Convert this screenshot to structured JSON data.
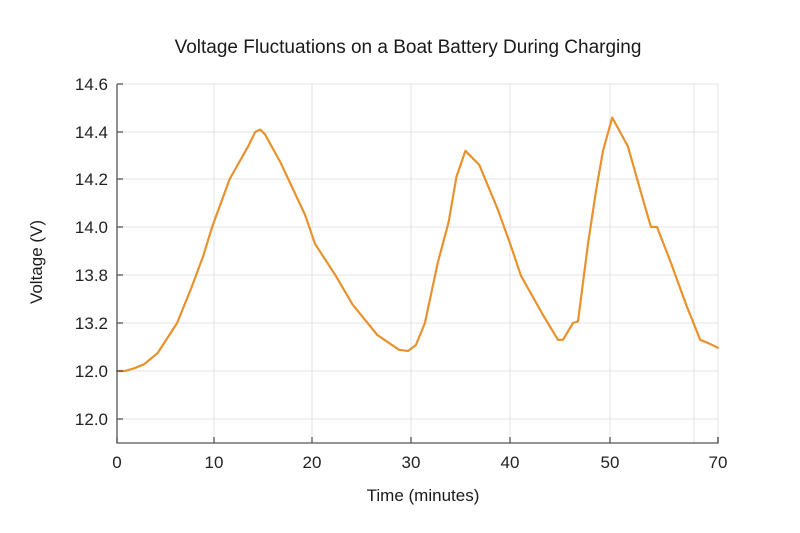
{
  "chart_data": {
    "type": "line",
    "title": "Voltage Fluctuations on a Boat Battery During Charging",
    "xlabel": "Time (minutes)",
    "ylabel": "Voltage (V)",
    "x_tick_labels": [
      "0",
      "10",
      "20",
      "30",
      "40",
      "50",
      "70"
    ],
    "y_tick_labels": [
      "12.0",
      "12.0",
      "13.2",
      "13.8",
      "14.0",
      "14.2",
      "14.4",
      "14.6"
    ],
    "xlim": [
      0,
      70
    ],
    "ylim_labels": [
      "12.0",
      "14.6"
    ],
    "grid": true,
    "legend": null,
    "series": [
      {
        "name": "Voltage",
        "color": "#E8922E",
        "x": [
          0,
          0.8,
          1.8,
          2.8,
          4.2,
          6.2,
          7.7,
          8.9,
          9.8,
          11.6,
          13.5,
          14.2,
          14.7,
          15.2,
          16.8,
          19.3,
          20.3,
          22.4,
          24.1,
          26.6,
          28.8,
          29.7,
          30.5,
          31.4,
          32.7,
          33.8,
          34.6,
          35.5,
          36.9,
          38.8,
          40.1,
          41.1,
          43.3,
          44.8,
          45.3,
          46.3,
          46.8,
          47.8,
          48.6,
          49.3,
          50.4,
          53.3,
          55.9,
          57.6,
          58.7,
          61.3,
          64.1,
          66.7,
          68.5,
          70
        ],
        "values": [
          12.0,
          12.0,
          12.07,
          12.17,
          12.45,
          13.2,
          13.65,
          13.88,
          14.0,
          14.2,
          14.34,
          14.4,
          14.41,
          14.39,
          14.27,
          14.05,
          13.93,
          13.79,
          13.43,
          12.9,
          12.53,
          12.5,
          12.65,
          13.2,
          13.85,
          14.02,
          14.21,
          14.32,
          14.26,
          14.07,
          13.92,
          13.79,
          13.3,
          12.78,
          12.78,
          13.2,
          13.22,
          13.93,
          14.15,
          14.32,
          14.46,
          14.34,
          14.13,
          14.0,
          14.0,
          13.85,
          13.43,
          12.78,
          12.68,
          12.58
        ]
      }
    ]
  },
  "colors": {
    "line": "#E8922E",
    "grid": "#e3e3e3",
    "axis": "#555555"
  }
}
